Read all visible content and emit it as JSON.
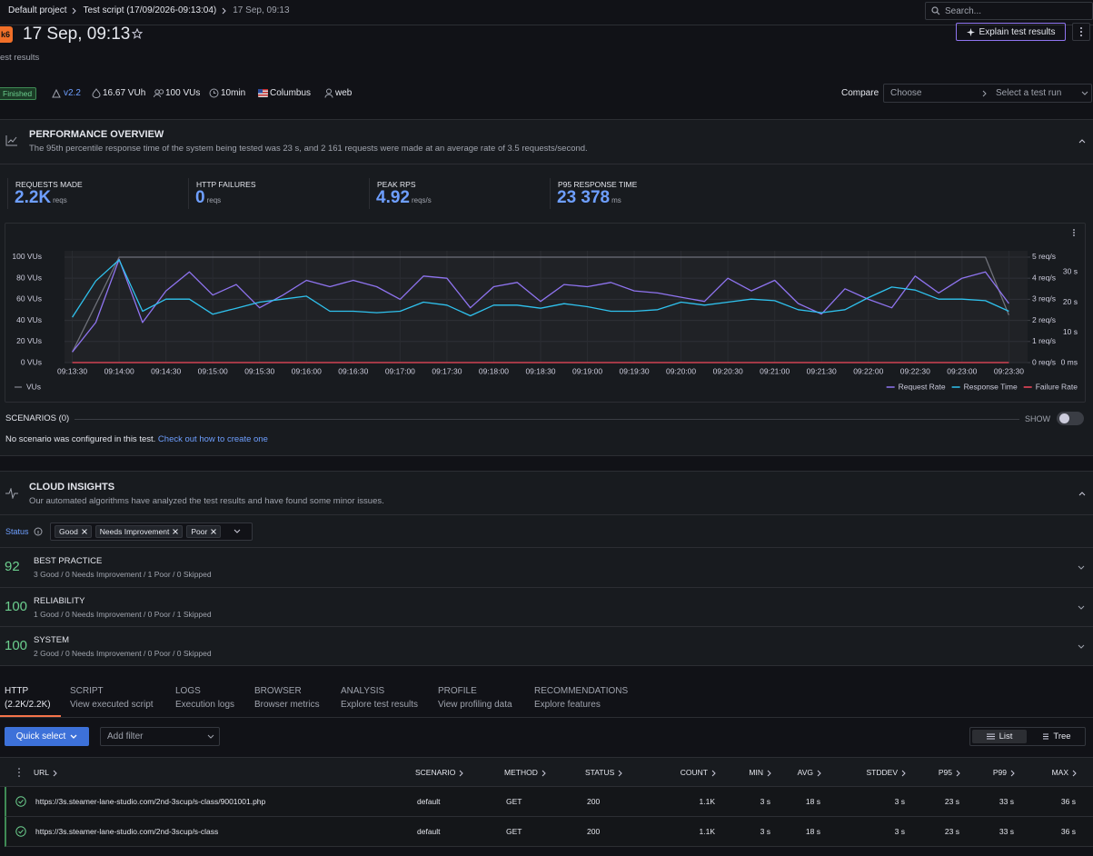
{
  "breadcrumbs": [
    "Default project",
    "Test script (17/09/2026-09:13:04)",
    "17 Sep, 09:13"
  ],
  "search": "Search...",
  "header": {
    "logo": "k6",
    "title": "17 Sep, 09:13",
    "subtitle": "est results",
    "explain": "Explain test results"
  },
  "meta": {
    "status": "Finished",
    "version": "v2.2",
    "vuh": "16.67 VUh",
    "vus": "100 VUs",
    "duration": "10min",
    "location": "Columbus",
    "scenario": "web"
  },
  "compare": {
    "label": "Compare",
    "choose": "Choose",
    "select": "Select a test run"
  },
  "performance": {
    "title": "PERFORMANCE OVERVIEW",
    "description": "The 95th percentile response time of the system being tested was 23 s, and 2 161 requests were made at an average rate of 3.5 requests/second.",
    "stats": [
      {
        "label": "REQUESTS MADE",
        "value": "2.2K",
        "unit": "reqs"
      },
      {
        "label": "HTTP FAILURES",
        "value": "0",
        "unit": "reqs"
      },
      {
        "label": "PEAK RPS",
        "value": "4.92",
        "unit": "reqs/s"
      },
      {
        "label": "P95 RESPONSE TIME",
        "value": "23 378",
        "unit": "ms"
      }
    ]
  },
  "chart_data": {
    "type": "line",
    "x": [
      "09:13:30",
      "09:13:45",
      "09:14:00",
      "09:14:15",
      "09:14:30",
      "09:14:45",
      "09:15:00",
      "09:15:15",
      "09:15:30",
      "09:15:45",
      "09:16:00",
      "09:16:15",
      "09:16:30",
      "09:16:45",
      "09:17:00",
      "09:17:15",
      "09:17:30",
      "09:17:45",
      "09:18:00",
      "09:18:15",
      "09:18:30",
      "09:18:45",
      "09:19:00",
      "09:19:15",
      "09:19:30",
      "09:19:45",
      "09:20:00",
      "09:20:15",
      "09:20:30",
      "09:20:45",
      "09:21:00",
      "09:21:15",
      "09:21:30",
      "09:21:45",
      "09:22:00",
      "09:22:15",
      "09:22:30",
      "09:22:45",
      "09:23:00",
      "09:23:15",
      "09:23:30"
    ],
    "xlim": [
      "09:13:25",
      "09:23:42"
    ],
    "xticks": [
      "09:13:30",
      "09:14:00",
      "09:14:30",
      "09:15:00",
      "09:15:30",
      "09:16:00",
      "09:16:30",
      "09:17:00",
      "09:17:30",
      "09:18:00",
      "09:18:30",
      "09:19:00",
      "09:19:30",
      "09:20:00",
      "09:20:30",
      "09:21:00",
      "09:21:30",
      "09:22:00",
      "09:22:30",
      "09:23:00",
      "09:23:30"
    ],
    "ylim": [
      0,
      106
    ],
    "yticks": [
      {
        "value": 0,
        "label": "0 VUs"
      },
      {
        "value": 20,
        "label": "20 VUs"
      },
      {
        "value": 40,
        "label": "40 VUs"
      },
      {
        "value": 60,
        "label": "60 VUs"
      },
      {
        "value": 80,
        "label": "80 VUs"
      },
      {
        "value": 100,
        "label": "100 VUs"
      }
    ],
    "y2lim": [
      0,
      5.3
    ],
    "y2ticks": [
      {
        "value": 0,
        "label": "0 req/s"
      },
      {
        "value": 1,
        "label": "1 req/s"
      },
      {
        "value": 2,
        "label": "2 req/s"
      },
      {
        "value": 3,
        "label": "3 req/s"
      },
      {
        "value": 4,
        "label": "4 req/s"
      },
      {
        "value": 5,
        "label": "5 req/s"
      }
    ],
    "y3lim": [
      0,
      37
    ],
    "y3ticks": [
      {
        "value": 0,
        "label": "0 ms"
      },
      {
        "value": 10,
        "label": "10 s"
      },
      {
        "value": 20,
        "label": "20 s"
      },
      {
        "value": 30,
        "label": "30 s"
      }
    ],
    "grid": true,
    "series": [
      {
        "name": "VUs",
        "color": "#6e7079",
        "axis": "y",
        "legend": "bottom-left",
        "values": [
          10,
          55,
          100,
          100,
          100,
          100,
          100,
          100,
          100,
          100,
          100,
          100,
          100,
          100,
          100,
          100,
          100,
          100,
          100,
          100,
          100,
          100,
          100,
          100,
          100,
          100,
          100,
          100,
          100,
          100,
          100,
          100,
          100,
          100,
          100,
          100,
          100,
          100,
          100,
          100,
          45
        ]
      },
      {
        "name": "Request Rate",
        "color": "#8f74f0",
        "axis": "y2",
        "legend": "bottom-right",
        "values": [
          0.5,
          1.9,
          4.9,
          1.9,
          3.4,
          4.3,
          3.2,
          3.7,
          2.6,
          3.2,
          3.9,
          3.6,
          3.9,
          3.6,
          3.0,
          4.1,
          4.0,
          2.6,
          3.6,
          3.8,
          2.9,
          3.7,
          3.6,
          3.8,
          3.4,
          3.3,
          3.1,
          2.9,
          4.0,
          3.4,
          3.9,
          2.8,
          2.3,
          3.5,
          3.0,
          2.6,
          4.1,
          3.3,
          4.0,
          4.3,
          2.8
        ]
      },
      {
        "name": "Response Time",
        "color": "#2fc2ee",
        "axis": "y3",
        "legend": "bottom-right",
        "values": [
          15,
          27,
          34,
          17,
          21,
          21,
          16,
          18,
          20,
          21,
          22,
          17,
          17,
          16.5,
          17,
          20,
          19,
          15.5,
          19,
          19,
          18,
          19.5,
          18.5,
          17,
          17,
          17.5,
          20,
          19,
          20,
          21,
          20.5,
          17.5,
          16.5,
          17.5,
          21.5,
          25,
          24,
          21,
          21,
          20.5,
          17
        ]
      },
      {
        "name": "Failure Rate",
        "color": "#f2495c",
        "axis": "y2",
        "legend": "bottom-right",
        "values": [
          0,
          0,
          0,
          0,
          0,
          0,
          0,
          0,
          0,
          0,
          0,
          0,
          0,
          0,
          0,
          0,
          0,
          0,
          0,
          0,
          0,
          0,
          0,
          0,
          0,
          0,
          0,
          0,
          0,
          0,
          0,
          0,
          0,
          0,
          0,
          0,
          0,
          0,
          0,
          0,
          0
        ]
      }
    ]
  },
  "scenarios": {
    "title": "SCENARIOS (0)",
    "toggle": "SHOW",
    "message": "No scenario was configured in this test.",
    "link": "Check out how to create one"
  },
  "insights": {
    "title": "CLOUD INSIGHTS",
    "description": "Our automated algorithms have analyzed the test results and have found some minor issues.",
    "filter_label": "Status",
    "filters": [
      "Good",
      "Needs Improvement",
      "Poor"
    ],
    "groups": [
      {
        "score": "92",
        "name": "BEST PRACTICE",
        "summary": "3 Good / 0 Needs Improvement / 1 Poor / 0 Skipped"
      },
      {
        "score": "100",
        "name": "RELIABILITY",
        "summary": "1 Good / 0 Needs Improvement / 0 Poor / 1 Skipped"
      },
      {
        "score": "100",
        "name": "SYSTEM",
        "summary": "2 Good / 0 Needs Improvement / 0 Poor / 0 Skipped"
      }
    ]
  },
  "tabs": [
    {
      "title": "HTTP",
      "subtitle": "(2.2K/2.2K)"
    },
    {
      "title": "SCRIPT",
      "subtitle": "View executed script"
    },
    {
      "title": "LOGS",
      "subtitle": "Execution logs"
    },
    {
      "title": "BROWSER",
      "subtitle": "Browser metrics"
    },
    {
      "title": "ANALYSIS",
      "subtitle": "Explore test results"
    },
    {
      "title": "PROFILE",
      "subtitle": "View profiling data"
    },
    {
      "title": "RECOMMENDATIONS",
      "subtitle": "Explore features"
    }
  ],
  "toolbar": {
    "quick_select": "Quick select",
    "filter": "Add filter",
    "views": [
      "List",
      "Tree"
    ]
  },
  "table": {
    "columns": [
      "URL",
      "SCENARIO",
      "METHOD",
      "STATUS",
      "COUNT",
      "MIN",
      "AVG",
      "STDDEV",
      "P95",
      "P99",
      "MAX"
    ],
    "rows": [
      [
        "https://3s.steamer-lane-studio.com/2nd-3scup/s-class/9001001.php",
        "default",
        "GET",
        "200",
        "1.1K",
        "3 s",
        "18 s",
        "3 s",
        "23 s",
        "33 s",
        "36 s"
      ],
      [
        "https://3s.steamer-lane-studio.com/2nd-3scup/s-class",
        "default",
        "GET",
        "200",
        "1.1K",
        "3 s",
        "18 s",
        "3 s",
        "23 s",
        "33 s",
        "36 s"
      ]
    ]
  }
}
